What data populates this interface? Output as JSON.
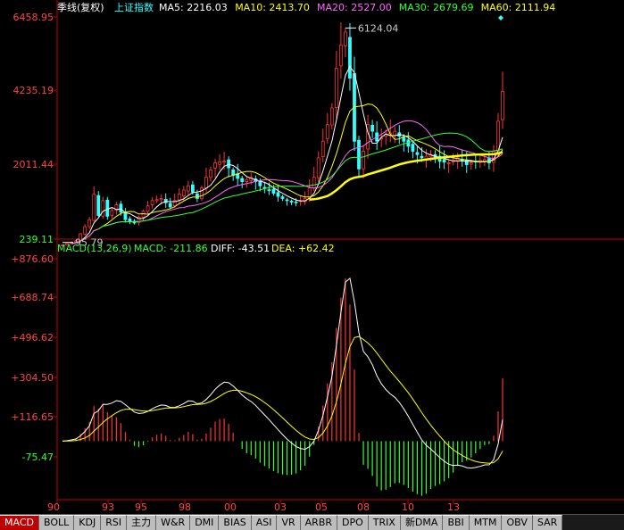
{
  "header": {
    "period_label": "季线(复权)",
    "symbol": "上证指数",
    "ma": [
      {
        "label": "MA5:",
        "value": "2216.03",
        "color": "#ffffff"
      },
      {
        "label": "MA10:",
        "value": "2413.70",
        "color": "#ffff00"
      },
      {
        "label": "MA20:",
        "value": "2527.00",
        "color": "#ff66ff"
      },
      {
        "label": "MA30:",
        "value": "2679.69",
        "color": "#33ff33"
      },
      {
        "label": "MA60:",
        "value": "2111.94",
        "color": "#ffff00"
      }
    ]
  },
  "macd_header": {
    "label": "MACD(13,26,9)",
    "macd": "MACD: -211.86",
    "diff": "DIFF: -43.51",
    "dea": "DEA: +62.42"
  },
  "colors": {
    "up": "#ff3333",
    "down": "#33ffff",
    "axis": "#c00000",
    "tick_text": "#ff4444",
    "diff_line": "#ffffff",
    "dea_line": "#ffff00",
    "hist_pos": "#ff3333",
    "hist_neg": "#33ff33"
  },
  "chart_data": [
    {
      "type": "candlestick",
      "title": "上证指数 季线(复权)",
      "y_ticks": [
        "6458.95",
        "4235.19",
        "2011.44",
        "239.11"
      ],
      "y_tick_values": [
        6458.95,
        4235.19,
        2011.44,
        239.11
      ],
      "ylim": [
        239.11,
        6458.95
      ],
      "annotations": [
        {
          "text": "6124.04",
          "value": 6124.04
        },
        {
          "text": "95.79",
          "value": 95.79
        }
      ],
      "x_ticks": [
        "90",
        "93",
        "95",
        "98",
        "00",
        "03",
        "05",
        "08",
        "10",
        "13"
      ],
      "series": [
        {
          "name": "MA5",
          "value": 2216.03
        },
        {
          "name": "MA10",
          "value": 2413.7
        },
        {
          "name": "MA20",
          "value": 2527.0
        },
        {
          "name": "MA30",
          "value": 2679.69
        },
        {
          "name": "MA60",
          "value": 2111.94
        }
      ]
    },
    {
      "type": "bar",
      "title": "MACD(13,26,9)",
      "y_ticks": [
        "+876.60",
        "+688.74",
        "+496.62",
        "+304.50",
        "+116.65",
        "-75.47"
      ],
      "y_tick_values": [
        876.6,
        688.74,
        496.62,
        304.5,
        116.65,
        -75.47
      ],
      "ylim": [
        -260,
        876.6
      ],
      "series": [
        {
          "name": "MACD",
          "value": -211.86
        },
        {
          "name": "DIFF",
          "value": -43.51
        },
        {
          "name": "DEA",
          "value": 62.42
        }
      ]
    }
  ],
  "tabs": [
    "MACD",
    "BOLL",
    "KDJ",
    "RSI",
    "主力",
    "W&R",
    "DMI",
    "BIAS",
    "ASI",
    "VR",
    "ARBR",
    "DPO",
    "TRIX",
    "新DMA",
    "BBI",
    "MTM",
    "OBV",
    "SAR"
  ]
}
